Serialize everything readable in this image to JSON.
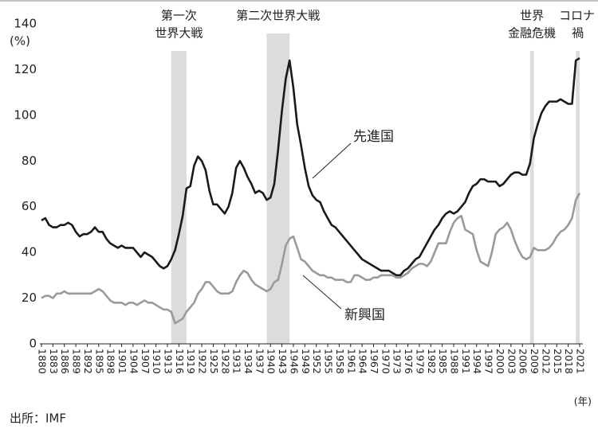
{
  "chart_data": {
    "type": "line",
    "x": [
      1880,
      1881,
      1882,
      1883,
      1884,
      1885,
      1886,
      1887,
      1888,
      1889,
      1890,
      1891,
      1892,
      1893,
      1894,
      1895,
      1896,
      1897,
      1898,
      1899,
      1900,
      1901,
      1902,
      1903,
      1904,
      1905,
      1906,
      1907,
      1908,
      1909,
      1910,
      1911,
      1912,
      1913,
      1914,
      1915,
      1916,
      1917,
      1918,
      1919,
      1920,
      1921,
      1922,
      1923,
      1924,
      1925,
      1926,
      1927,
      1928,
      1929,
      1930,
      1931,
      1932,
      1933,
      1934,
      1935,
      1936,
      1937,
      1938,
      1939,
      1940,
      1941,
      1942,
      1943,
      1944,
      1945,
      1946,
      1947,
      1948,
      1949,
      1950,
      1951,
      1952,
      1953,
      1954,
      1955,
      1956,
      1957,
      1958,
      1959,
      1960,
      1961,
      1962,
      1963,
      1964,
      1965,
      1966,
      1967,
      1968,
      1969,
      1970,
      1971,
      1972,
      1973,
      1974,
      1975,
      1976,
      1977,
      1978,
      1979,
      1980,
      1981,
      1982,
      1983,
      1984,
      1985,
      1986,
      1987,
      1988,
      1989,
      1990,
      1991,
      1992,
      1993,
      1994,
      1995,
      1996,
      1997,
      1998,
      1999,
      2000,
      2001,
      2002,
      2003,
      2004,
      2005,
      2006,
      2007,
      2008,
      2009,
      2010,
      2011,
      2012,
      2013,
      2014,
      2015,
      2016,
      2017,
      2018,
      2019,
      2020,
      2021
    ],
    "series": [
      {
        "name": "先進国",
        "color": "#1a1a1a",
        "values": [
          54,
          55,
          52,
          51,
          51,
          52,
          52,
          53,
          52,
          49,
          47,
          48,
          48,
          49,
          51,
          49,
          49,
          46,
          44,
          43,
          42,
          43,
          42,
          42,
          42,
          40,
          38,
          40,
          39,
          38,
          36,
          34,
          33,
          34,
          37,
          41,
          48,
          56,
          68,
          69,
          78,
          82,
          80,
          76,
          67,
          61,
          61,
          59,
          57,
          60,
          66,
          77,
          80,
          77,
          73,
          70,
          66,
          67,
          66,
          63,
          64,
          70,
          85,
          102,
          116,
          124,
          112,
          96,
          87,
          77,
          69,
          65,
          63,
          62,
          58,
          55,
          52,
          51,
          49,
          47,
          45,
          43,
          41,
          39,
          37,
          36,
          35,
          34,
          33,
          32,
          32,
          32,
          31,
          30,
          30,
          32,
          33,
          35,
          37,
          38,
          41,
          44,
          47,
          50,
          52,
          55,
          57,
          58,
          57,
          58,
          60,
          62,
          66,
          69,
          70,
          72,
          72,
          71,
          71,
          71,
          69,
          70,
          72,
          74,
          75,
          75,
          74,
          74,
          79,
          90,
          96,
          101,
          104,
          106,
          106,
          106,
          107,
          106,
          105,
          105,
          124,
          125
        ]
      },
      {
        "name": "新興国",
        "color": "#9a9a9a",
        "values": [
          20,
          21,
          21,
          20,
          22,
          22,
          23,
          22,
          22,
          22,
          22,
          22,
          22,
          22,
          23,
          24,
          23,
          21,
          19,
          18,
          18,
          18,
          17,
          18,
          18,
          17,
          18,
          19,
          18,
          18,
          17,
          16,
          15,
          15,
          14,
          9,
          10,
          11,
          14,
          16,
          18,
          22,
          24,
          27,
          27,
          25,
          23,
          22,
          22,
          22,
          23,
          27,
          30,
          32,
          31,
          28,
          26,
          25,
          24,
          23,
          24,
          27,
          28,
          35,
          43,
          46,
          47,
          42,
          37,
          36,
          34,
          32,
          31,
          30,
          30,
          29,
          29,
          28,
          28,
          28,
          27,
          27,
          30,
          30,
          29,
          28,
          28,
          29,
          29,
          30,
          30,
          30,
          30,
          29,
          29,
          30,
          31,
          33,
          34,
          35,
          35,
          34,
          36,
          40,
          44,
          44,
          44,
          49,
          53,
          55,
          56,
          50,
          49,
          48,
          41,
          36,
          35,
          34,
          40,
          48,
          50,
          51,
          53,
          50,
          45,
          41,
          38,
          37,
          38,
          42,
          41,
          41,
          41,
          42,
          44,
          47,
          49,
          50,
          52,
          55,
          63,
          66
        ]
      }
    ],
    "xlim": [
      1880,
      2021
    ],
    "ylim": [
      0,
      140
    ],
    "xticks": [
      1880,
      1883,
      1886,
      1889,
      1892,
      1895,
      1898,
      1901,
      1904,
      1907,
      1910,
      1913,
      1916,
      1919,
      1922,
      1925,
      1928,
      1931,
      1934,
      1937,
      1940,
      1943,
      1946,
      1949,
      1952,
      1955,
      1958,
      1961,
      1964,
      1967,
      1970,
      1973,
      1976,
      1979,
      1982,
      1985,
      1988,
      1991,
      1994,
      1997,
      2000,
      2003,
      2006,
      2009,
      2012,
      2015,
      2018,
      2021
    ],
    "yticks": [
      0,
      20,
      40,
      60,
      80,
      100,
      120,
      140
    ],
    "y_label": "(%)",
    "x_label": "(年)",
    "shaded_periods": [
      {
        "start": 1914,
        "end": 1918,
        "label": [
          "第一次",
          "世界大戦"
        ]
      },
      {
        "start": 1939,
        "end": 1945,
        "label": [
          "第二次世界大戦"
        ]
      },
      {
        "start": 2008,
        "end": 2009,
        "label": [
          "世界",
          "金融危機"
        ]
      },
      {
        "start": 2020,
        "end": 2021,
        "label": [
          "コロナ",
          "禍"
        ]
      }
    ],
    "source": "出所：IMF"
  }
}
